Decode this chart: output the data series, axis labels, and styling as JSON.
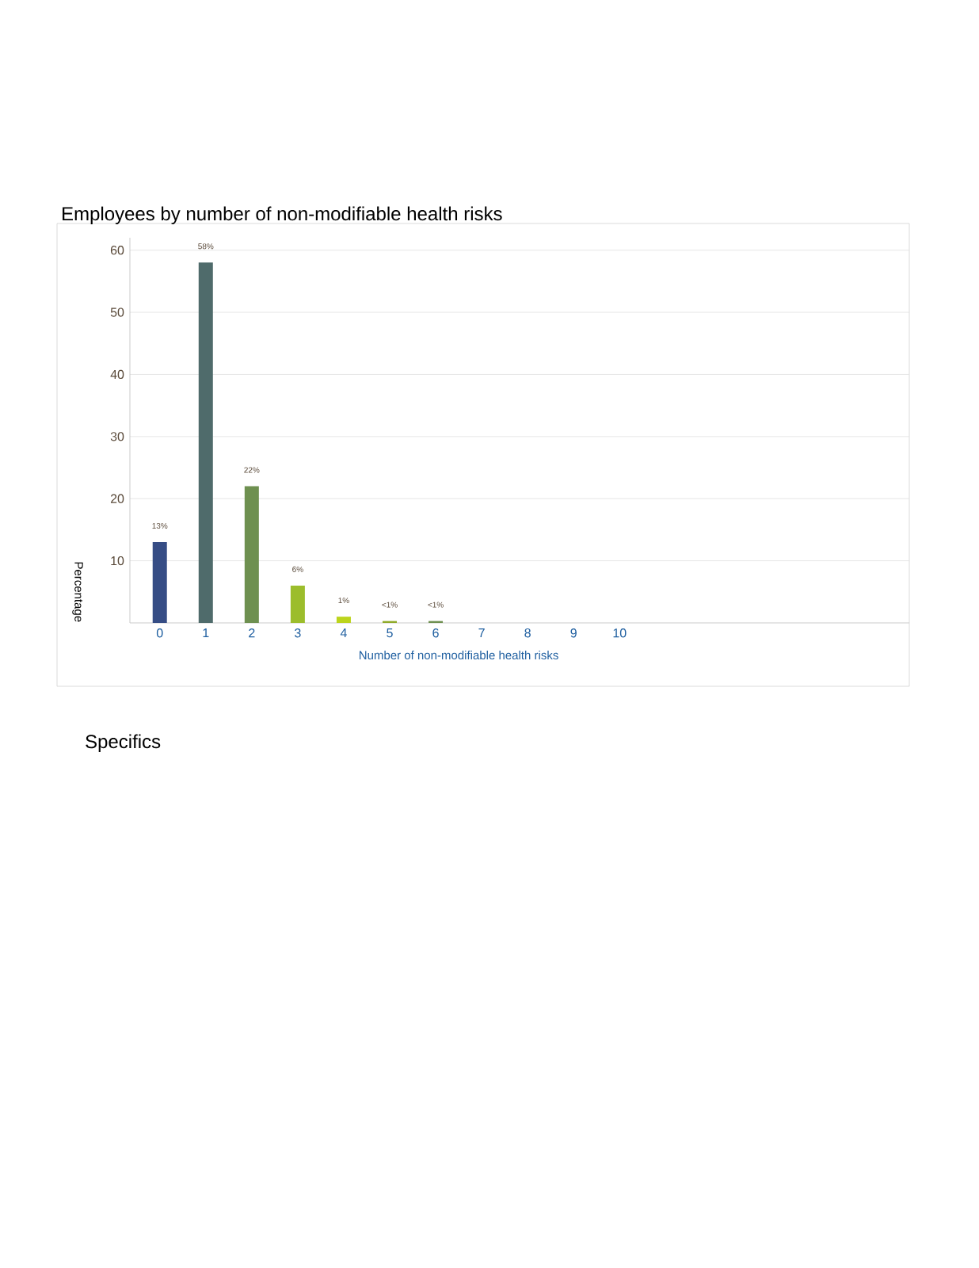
{
  "chart_data": {
    "type": "bar",
    "title": "Employees by number of non-modifiable health risks",
    "xlabel": "Number of non-modifiable health risks",
    "ylabel": "Percentage",
    "annotations": [
      "Specifics"
    ],
    "categories": [
      "0",
      "1",
      "2",
      "3",
      "4",
      "5",
      "6",
      "7",
      "8",
      "9",
      "10"
    ],
    "values": [
      13,
      58,
      22,
      6,
      1,
      0.3,
      0.3,
      null,
      null,
      null,
      null
    ],
    "value_labels": [
      "13%",
      "58%",
      "22%",
      "6%",
      "1%",
      "<1%",
      "<1%",
      null,
      null,
      null,
      null
    ],
    "colors": [
      "#364d85",
      "#4f6b6b",
      "#6e9050",
      "#9cbd2c",
      "#bcd41c",
      "#8faa2a",
      "#6e9050",
      "#364d85",
      "#4f6b6b",
      "#6e9050",
      "#9cbd2c"
    ],
    "ylim": [
      0,
      62
    ],
    "yticks": [
      10,
      20,
      30,
      40,
      50,
      60
    ],
    "grid": "y"
  }
}
